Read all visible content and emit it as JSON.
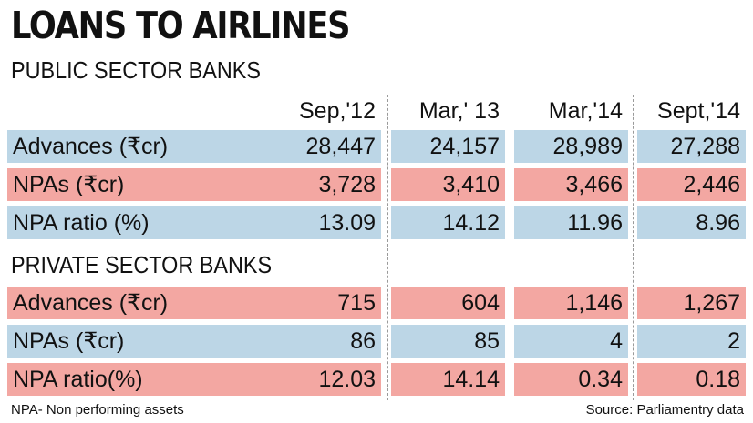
{
  "title": "LOANS TO AIRLINES",
  "columns": [
    "Sep,'12",
    "Mar,' 13",
    "Mar,'14",
    "Sept,'14"
  ],
  "sections": [
    {
      "name": "PUBLIC SECTOR BANKS",
      "rows": [
        {
          "label": "Advances (₹cr)",
          "values": [
            "28,447",
            "24,157",
            "28,989",
            "27,288"
          ]
        },
        {
          "label": "NPAs (₹cr)",
          "values": [
            "3,728",
            "3,410",
            "3,466",
            "2,446"
          ]
        },
        {
          "label": "NPA ratio (%)",
          "values": [
            "13.09",
            "14.12",
            "11.96",
            "8.96"
          ]
        }
      ]
    },
    {
      "name": "PRIVATE SECTOR BANKS",
      "rows": [
        {
          "label": "Advances (₹cr)",
          "values": [
            "715",
            "604",
            "1,146",
            "1,267"
          ]
        },
        {
          "label": "NPAs (₹cr)",
          "values": [
            "86",
            "85",
            "4",
            "2"
          ]
        },
        {
          "label": "NPA ratio(%)",
          "values": [
            "12.03",
            "14.14",
            "0.34",
            "0.18"
          ]
        }
      ]
    }
  ],
  "footnote": "NPA- Non performing assets",
  "source": "Source: Parliamentry data",
  "colors": {
    "blue_row": "#bcd6e6",
    "pink_row": "#f3a7a2"
  },
  "chart_data": {
    "type": "table",
    "title": "LOANS TO AIRLINES",
    "columns": [
      "Sep,'12",
      "Mar,' 13",
      "Mar,'14",
      "Sept,'14"
    ],
    "groups": [
      {
        "name": "PUBLIC SECTOR BANKS",
        "series": [
          {
            "name": "Advances (₹cr)",
            "values": [
              28447,
              24157,
              28989,
              27288
            ]
          },
          {
            "name": "NPAs (₹cr)",
            "values": [
              3728,
              3410,
              3466,
              2446
            ]
          },
          {
            "name": "NPA ratio (%)",
            "values": [
              13.09,
              14.12,
              11.96,
              8.96
            ]
          }
        ]
      },
      {
        "name": "PRIVATE SECTOR BANKS",
        "series": [
          {
            "name": "Advances (₹cr)",
            "values": [
              715,
              604,
              1146,
              1267
            ]
          },
          {
            "name": "NPAs (₹cr)",
            "values": [
              86,
              85,
              4,
              2
            ]
          },
          {
            "name": "NPA ratio(%)",
            "values": [
              12.03,
              14.14,
              0.34,
              0.18
            ]
          }
        ]
      }
    ]
  }
}
